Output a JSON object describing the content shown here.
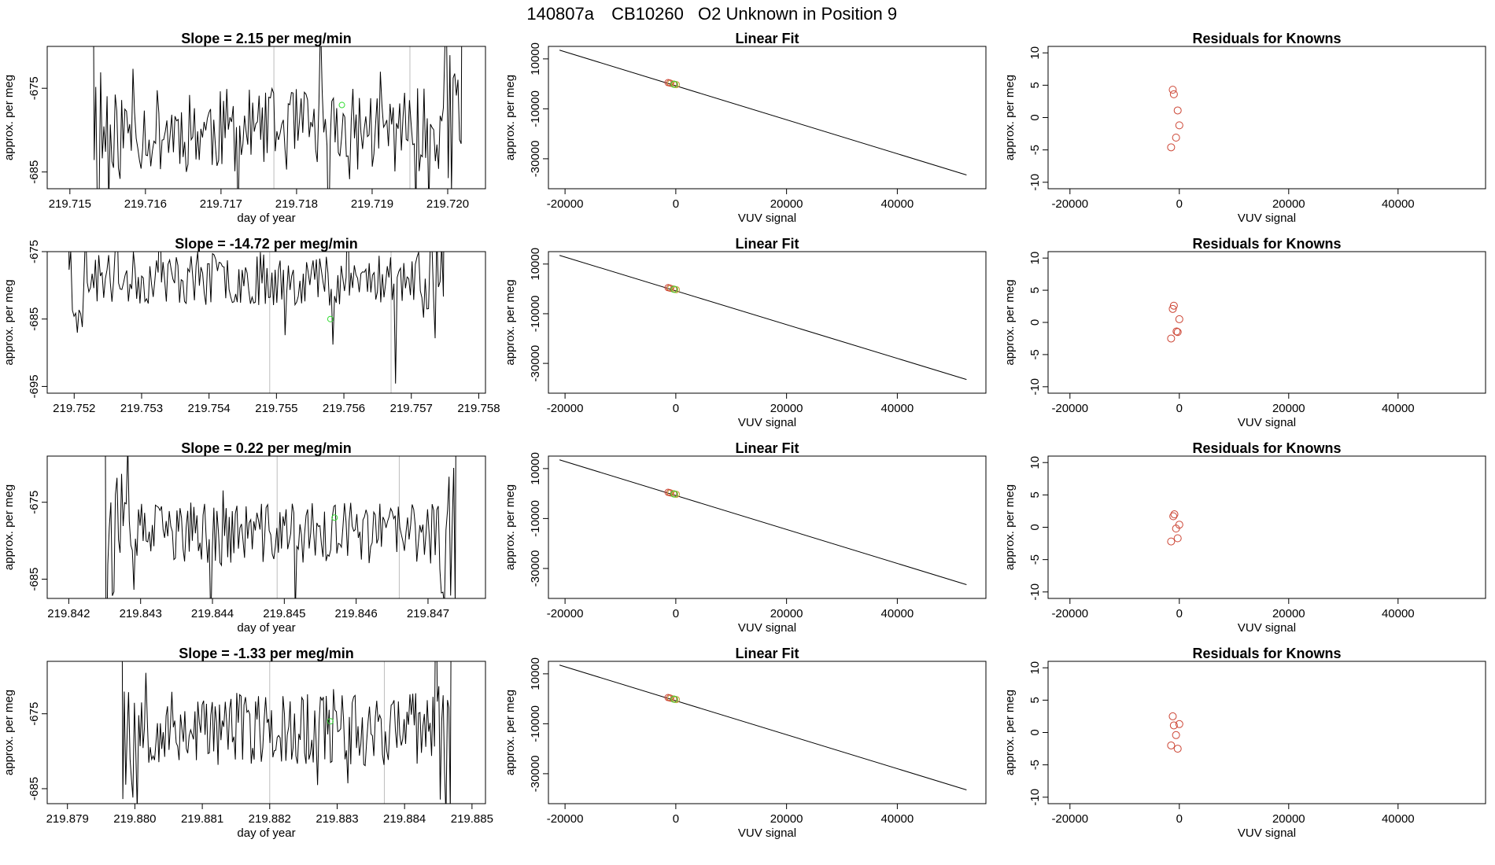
{
  "header": {
    "run": "140807a",
    "tank": "CB10260",
    "description": "O2 Unknown in Position  9"
  },
  "colors": {
    "trace": "#000000",
    "marker_unknown": "#33dd33",
    "marker_known": "#cc4433",
    "marker_standard": "#c8a040",
    "reference_line": "#bdbdbd"
  },
  "chart_data": [
    {
      "type": "line",
      "row": 1,
      "panel": "time-series",
      "title": "Slope =  2.15  per meg/min",
      "xlabel": "day of year",
      "ylabel": "approx. per meg",
      "xlim": [
        219.7147,
        219.7205
      ],
      "ylim": [
        -687,
        -670
      ],
      "xticks": [
        219.715,
        219.716,
        219.717,
        219.718,
        219.719,
        219.72
      ],
      "xtick_labels": [
        "219.715",
        "219.716",
        "219.717",
        "219.718",
        "219.719",
        "219.720"
      ],
      "yticks": [
        -685,
        -675
      ],
      "ytick_labels": [
        "-685",
        "-675"
      ],
      "vlines": [
        219.7177,
        219.7195
      ],
      "marker": {
        "x": 219.7186,
        "y": -677
      },
      "series_shape": {
        "start": 219.7153,
        "end": 219.7202,
        "points": 230,
        "center": -680,
        "amplitude": 5,
        "seed": 11
      }
    },
    {
      "type": "line",
      "row": 2,
      "panel": "time-series",
      "title": "Slope =  -14.72  per meg/min",
      "xlabel": "",
      "ylabel": "approx. per meg",
      "xlim": [
        219.7516,
        219.7581
      ],
      "ylim": [
        -696,
        -675
      ],
      "xticks": [
        219.752,
        219.753,
        219.754,
        219.755,
        219.756,
        219.757,
        219.758
      ],
      "xtick_labels": [
        "219.752",
        "219.753",
        "219.754",
        "219.755",
        "219.756",
        "219.757",
        "219.758"
      ],
      "yticks": [
        -695,
        -685,
        -675
      ],
      "ytick_labels": [
        "-695",
        "-685",
        "-675"
      ],
      "vlines": [
        219.7549,
        219.7567
      ],
      "marker": {
        "x": 219.7558,
        "y": -685
      },
      "series_shape": {
        "start": 219.7519,
        "end": 219.7575,
        "points": 230,
        "center": -679,
        "amplitude": 4,
        "seed": 23
      }
    },
    {
      "type": "line",
      "row": 3,
      "panel": "time-series",
      "title": "Slope =  0.22  per meg/min",
      "xlabel": "day of year",
      "ylabel": "approx. per meg",
      "xlim": [
        219.8417,
        219.8478
      ],
      "ylim": [
        -687.5,
        -669
      ],
      "xticks": [
        219.842,
        219.843,
        219.844,
        219.845,
        219.846,
        219.847
      ],
      "xtick_labels": [
        "219.842",
        "219.843",
        "219.844",
        "219.845",
        "219.846",
        "219.847"
      ],
      "yticks": [
        -685,
        -675
      ],
      "ytick_labels": [
        "-685",
        "-675"
      ],
      "vlines": [
        219.8449,
        219.8466
      ],
      "marker": {
        "x": 219.8457,
        "y": -677
      },
      "series_shape": {
        "start": 219.8425,
        "end": 219.8474,
        "points": 230,
        "center": -679,
        "amplitude": 4,
        "seed": 37
      }
    },
    {
      "type": "line",
      "row": 4,
      "panel": "time-series",
      "title": "Slope =  -1.33  per meg/min",
      "xlabel": "day of year",
      "ylabel": "approx. per meg",
      "xlim": [
        219.8787,
        219.8852
      ],
      "ylim": [
        -687,
        -668
      ],
      "xticks": [
        219.879,
        219.88,
        219.881,
        219.882,
        219.883,
        219.884,
        219.885
      ],
      "xtick_labels": [
        "219.879",
        "219.880",
        "219.881",
        "219.882",
        "219.883",
        "219.884",
        "219.885"
      ],
      "yticks": [
        -685,
        -675
      ],
      "ytick_labels": [
        "-685",
        "-675"
      ],
      "vlines": [
        219.882,
        219.8837
      ],
      "marker": {
        "x": 219.8829,
        "y": -676
      },
      "series_shape": {
        "start": 219.8798,
        "end": 219.8847,
        "points": 230,
        "center": -677,
        "amplitude": 5,
        "seed": 53
      }
    },
    {
      "type": "scatter",
      "row": 1,
      "panel": "linear-fit",
      "title": "Linear Fit",
      "xlabel": "VUV signal",
      "ylabel": "approx. per meg",
      "xlim": [
        -23000,
        56000
      ],
      "ylim": [
        -42000,
        15000
      ],
      "xticks": [
        -20000,
        0,
        20000,
        40000
      ],
      "xtick_labels": [
        "-20000",
        "0",
        "20000",
        "40000"
      ],
      "yticks": [
        -30000,
        -10000,
        10000
      ],
      "ytick_labels": [
        "-30000",
        "-10000",
        "10000"
      ],
      "line": {
        "x1": -21000,
        "y1": 13500,
        "x2": 52500,
        "y2": -36500
      },
      "points": [
        {
          "x": -1400,
          "y": 500
        },
        {
          "x": -900,
          "y": 200
        },
        {
          "x": -400,
          "y": -100
        },
        {
          "x": 100,
          "y": -300
        },
        {
          "x": -1100,
          "y": 350
        },
        {
          "x": -200,
          "y": -200
        }
      ]
    },
    {
      "type": "scatter",
      "row": 2,
      "panel": "linear-fit",
      "title": "Linear Fit",
      "xlabel": "VUV signal",
      "ylabel": "approx. per meg",
      "xlim": [
        -23000,
        56000
      ],
      "ylim": [
        -42000,
        15000
      ],
      "xticks": [
        -20000,
        0,
        20000,
        40000
      ],
      "xtick_labels": [
        "-20000",
        "0",
        "20000",
        "40000"
      ],
      "yticks": [
        -30000,
        -10000,
        10000
      ],
      "ytick_labels": [
        "-30000",
        "-10000",
        "10000"
      ],
      "line": {
        "x1": -21000,
        "y1": 13500,
        "x2": 52500,
        "y2": -36500
      },
      "points": [
        {
          "x": -1400,
          "y": 500
        },
        {
          "x": -900,
          "y": 200
        },
        {
          "x": -400,
          "y": -100
        },
        {
          "x": 100,
          "y": -300
        },
        {
          "x": -1100,
          "y": 350
        },
        {
          "x": -200,
          "y": -200
        }
      ]
    },
    {
      "type": "scatter",
      "row": 3,
      "panel": "linear-fit",
      "title": "Linear Fit",
      "xlabel": "VUV signal",
      "ylabel": "approx. per meg",
      "xlim": [
        -23000,
        56000
      ],
      "ylim": [
        -42000,
        15000
      ],
      "xticks": [
        -20000,
        0,
        20000,
        40000
      ],
      "xtick_labels": [
        "-20000",
        "0",
        "20000",
        "40000"
      ],
      "yticks": [
        -30000,
        -10000,
        10000
      ],
      "ytick_labels": [
        "-30000",
        "-10000",
        "10000"
      ],
      "line": {
        "x1": -21000,
        "y1": 13500,
        "x2": 52500,
        "y2": -36500
      },
      "points": [
        {
          "x": -1400,
          "y": 500
        },
        {
          "x": -900,
          "y": 200
        },
        {
          "x": -400,
          "y": -100
        },
        {
          "x": 100,
          "y": -300
        },
        {
          "x": -1100,
          "y": 350
        },
        {
          "x": -200,
          "y": -200
        }
      ]
    },
    {
      "type": "scatter",
      "row": 4,
      "panel": "linear-fit",
      "title": "Linear Fit",
      "xlabel": "VUV signal",
      "ylabel": "approx. per meg",
      "xlim": [
        -23000,
        56000
      ],
      "ylim": [
        -42000,
        15000
      ],
      "xticks": [
        -20000,
        0,
        20000,
        40000
      ],
      "xtick_labels": [
        "-20000",
        "0",
        "20000",
        "40000"
      ],
      "yticks": [
        -30000,
        -10000,
        10000
      ],
      "ytick_labels": [
        "-30000",
        "-10000",
        "10000"
      ],
      "line": {
        "x1": -21000,
        "y1": 13500,
        "x2": 52500,
        "y2": -36500
      },
      "points": [
        {
          "x": -1400,
          "y": 500
        },
        {
          "x": -900,
          "y": 200
        },
        {
          "x": -400,
          "y": -100
        },
        {
          "x": 100,
          "y": -300
        },
        {
          "x": -1100,
          "y": 350
        },
        {
          "x": -200,
          "y": -200
        }
      ]
    },
    {
      "type": "scatter",
      "row": 1,
      "panel": "residuals",
      "title": "Residuals for Knowns",
      "xlabel": "VUV signal",
      "ylabel": "approx. per meg",
      "xlim": [
        -24000,
        56000
      ],
      "ylim": [
        -11,
        11
      ],
      "xticks": [
        -20000,
        0,
        20000,
        40000
      ],
      "xtick_labels": [
        "-20000",
        "0",
        "20000",
        "40000"
      ],
      "yticks": [
        -10,
        -5,
        0,
        5,
        10
      ],
      "ytick_labels": [
        "-10",
        "-5",
        "0",
        "5",
        "10"
      ],
      "points": [
        {
          "x": -1200,
          "y": 4.3
        },
        {
          "x": -1000,
          "y": 3.6
        },
        {
          "x": -300,
          "y": 1.1
        },
        {
          "x": 0,
          "y": -1.2
        },
        {
          "x": -600,
          "y": -3.1
        },
        {
          "x": -1500,
          "y": -4.6
        }
      ]
    },
    {
      "type": "scatter",
      "row": 2,
      "panel": "residuals",
      "title": "Residuals for Knowns",
      "xlabel": "VUV signal",
      "ylabel": "approx. per meg",
      "xlim": [
        -24000,
        56000
      ],
      "ylim": [
        -11,
        11
      ],
      "xticks": [
        -20000,
        0,
        20000,
        40000
      ],
      "xtick_labels": [
        "-20000",
        "0",
        "20000",
        "40000"
      ],
      "yticks": [
        -10,
        -5,
        0,
        5,
        10
      ],
      "ytick_labels": [
        "-10",
        "-5",
        "0",
        "5",
        "10"
      ],
      "points": [
        {
          "x": -1000,
          "y": 2.6
        },
        {
          "x": -1200,
          "y": 2.1
        },
        {
          "x": 0,
          "y": 0.5
        },
        {
          "x": -500,
          "y": -1.4
        },
        {
          "x": -300,
          "y": -1.5
        },
        {
          "x": -1500,
          "y": -2.5
        }
      ]
    },
    {
      "type": "scatter",
      "row": 3,
      "panel": "residuals",
      "title": "Residuals for Knowns",
      "xlabel": "VUV signal",
      "ylabel": "approx. per meg",
      "xlim": [
        -24000,
        56000
      ],
      "ylim": [
        -11,
        11
      ],
      "xticks": [
        -20000,
        0,
        20000,
        40000
      ],
      "xtick_labels": [
        "-20000",
        "0",
        "20000",
        "40000"
      ],
      "yticks": [
        -10,
        -5,
        0,
        5,
        10
      ],
      "ytick_labels": [
        "-10",
        "-5",
        "0",
        "5",
        "10"
      ],
      "points": [
        {
          "x": -900,
          "y": 2.0
        },
        {
          "x": -1100,
          "y": 1.7
        },
        {
          "x": 0,
          "y": 0.4
        },
        {
          "x": -600,
          "y": -0.2
        },
        {
          "x": -300,
          "y": -1.7
        },
        {
          "x": -1500,
          "y": -2.2
        }
      ]
    },
    {
      "type": "scatter",
      "row": 4,
      "panel": "residuals",
      "title": "Residuals for Knowns",
      "xlabel": "VUV signal",
      "ylabel": "approx. per meg",
      "xlim": [
        -24000,
        56000
      ],
      "ylim": [
        -11,
        11
      ],
      "xticks": [
        -20000,
        0,
        20000,
        40000
      ],
      "xtick_labels": [
        "-20000",
        "0",
        "20000",
        "40000"
      ],
      "yticks": [
        -10,
        -5,
        0,
        5,
        10
      ],
      "ytick_labels": [
        "-10",
        "-5",
        "0",
        "5",
        "10"
      ],
      "points": [
        {
          "x": -1200,
          "y": 2.5
        },
        {
          "x": 0,
          "y": 1.3
        },
        {
          "x": -1000,
          "y": 1.1
        },
        {
          "x": -600,
          "y": -0.4
        },
        {
          "x": -1500,
          "y": -2.0
        },
        {
          "x": -300,
          "y": -2.5
        }
      ]
    }
  ]
}
